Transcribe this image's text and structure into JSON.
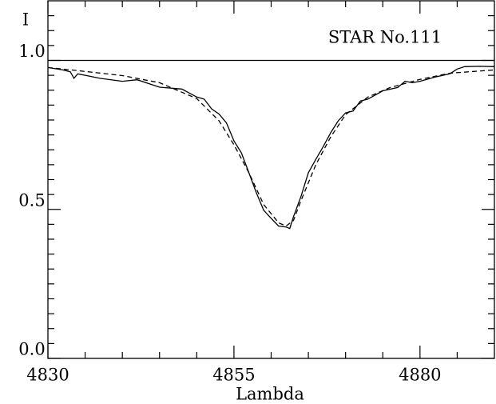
{
  "chart_data": {
    "type": "line",
    "title": "STAR  No.111",
    "x_label": "Lambda",
    "y_label": "I",
    "xlim": [
      4830,
      4890
    ],
    "ylim": [
      0,
      1.2
    ],
    "xticks": [
      4830,
      4855,
      4880
    ],
    "xticks_minor": [
      4835,
      4840,
      4845,
      4850,
      4860,
      4865,
      4870,
      4875,
      4885
    ],
    "yticks": [
      {
        "value": 0,
        "label": "0.0"
      },
      0.5,
      {
        "value": 1,
        "label": "1.0"
      }
    ],
    "yticks_minor": [
      0.05,
      0.1,
      0.15,
      0.2,
      0.25,
      0.3,
      0.35,
      0.4,
      0.45,
      0.55,
      0.6,
      0.65,
      0.7,
      0.75,
      0.8,
      0.85,
      0.9,
      0.95,
      1.05,
      1.1,
      1.15
    ],
    "series": [
      {
        "color": "#000000",
        "style": "solid",
        "x": [
          4830,
          4890
        ],
        "values": [
          1,
          1
        ]
      },
      {
        "color": "#000000",
        "style": "solid",
        "x": [
          4830,
          4832,
          4833,
          4833.5,
          4834,
          4835,
          4837,
          4840,
          4842,
          4845,
          4848,
          4850,
          4851,
          4852,
          4853,
          4854,
          4855,
          4856,
          4857,
          4858,
          4859,
          4860,
          4861,
          4862,
          4862.5,
          4863,
          4864,
          4865,
          4866,
          4867,
          4868,
          4869,
          4870,
          4871,
          4872,
          4873,
          4875,
          4877,
          4878,
          4879,
          4880,
          4882,
          4884,
          4885,
          4886,
          4888,
          4890
        ],
        "values": [
          0.976,
          0.968,
          0.962,
          0.94,
          0.955,
          0.95,
          0.94,
          0.93,
          0.935,
          0.91,
          0.904,
          0.877,
          0.87,
          0.837,
          0.82,
          0.79,
          0.73,
          0.69,
          0.623,
          0.556,
          0.497,
          0.47,
          0.444,
          0.441,
          0.436,
          0.476,
          0.543,
          0.623,
          0.668,
          0.711,
          0.757,
          0.797,
          0.824,
          0.83,
          0.864,
          0.87,
          0.898,
          0.909,
          0.93,
          0.925,
          0.93,
          0.944,
          0.955,
          0.971,
          0.979,
          0.98,
          0.979
        ]
      },
      {
        "color": "#000000",
        "style": "dashed",
        "x": [
          4830,
          4835,
          4840,
          4845,
          4850,
          4853,
          4855,
          4857,
          4859,
          4861,
          4862,
          4863,
          4864,
          4866,
          4868,
          4870,
          4873,
          4876,
          4880,
          4884,
          4890
        ],
        "values": [
          0.976,
          0.963,
          0.949,
          0.925,
          0.872,
          0.797,
          0.717,
          0.623,
          0.516,
          0.455,
          0.444,
          0.463,
          0.529,
          0.65,
          0.743,
          0.818,
          0.877,
          0.909,
          0.936,
          0.957,
          0.968
        ]
      }
    ]
  }
}
